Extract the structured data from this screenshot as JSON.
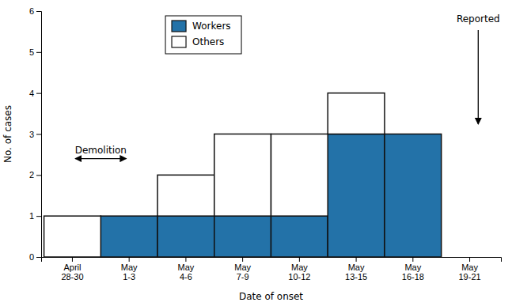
{
  "chart_data": {
    "type": "bar",
    "stacked": true,
    "categories": [
      "April\n28-30",
      "May\n1-3",
      "May\n4-6",
      "May\n7-9",
      "May\n10-12",
      "May\n13-15",
      "May\n16-18",
      "May\n19-21"
    ],
    "series": [
      {
        "name": "Workers",
        "color": "#2372a8",
        "values": [
          0,
          1,
          1,
          1,
          1,
          3,
          3,
          0
        ]
      },
      {
        "name": "Others",
        "color": "#ffffff",
        "values": [
          1,
          0,
          1,
          2,
          2,
          1,
          0,
          0
        ]
      }
    ],
    "x_label": "Date of onset",
    "y_label": "No. of cases",
    "ylim": [
      0,
      6
    ],
    "yticks": [
      0,
      1,
      2,
      3,
      4,
      5,
      6
    ],
    "legend": "upper left",
    "annotations": [
      "Demolition",
      "Reported"
    ]
  }
}
